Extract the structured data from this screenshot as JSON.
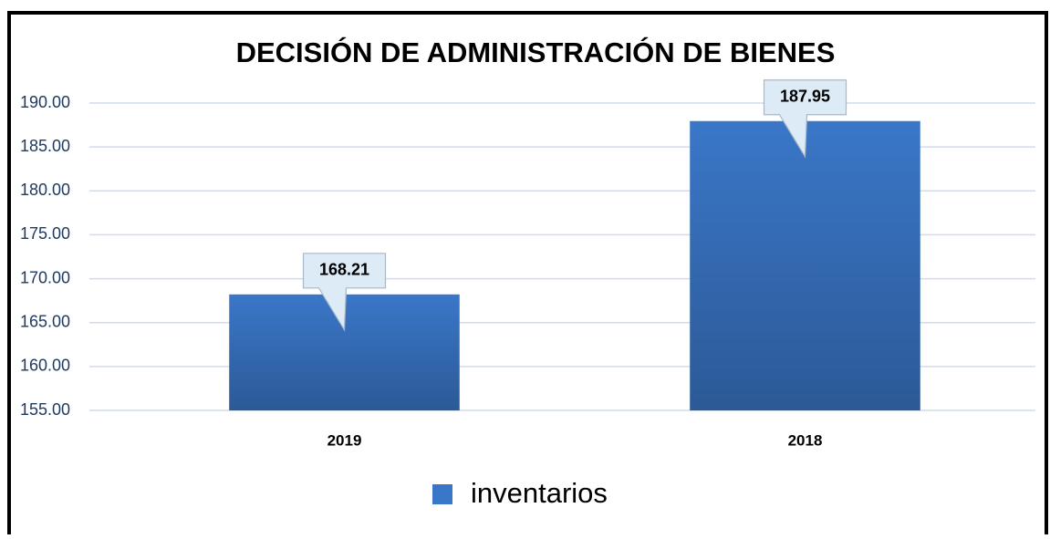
{
  "chart_data": {
    "type": "bar",
    "title": "DECISIÓN DE ADMINISTRACIÓN DE BIENES",
    "categories": [
      "2019",
      "2018"
    ],
    "series": [
      {
        "name": "inventarios",
        "color": "#3a77c8",
        "values": [
          168.21,
          187.95
        ]
      }
    ],
    "ylim": [
      155,
      190
    ],
    "yticks": [
      {
        "value": 155,
        "label": "155.00"
      },
      {
        "value": 160,
        "label": "160.00"
      },
      {
        "value": 165,
        "label": "165.00"
      },
      {
        "value": 170,
        "label": "170.00"
      },
      {
        "value": 175,
        "label": "175.00"
      },
      {
        "value": 180,
        "label": "180.00"
      },
      {
        "value": 185,
        "label": "185.00"
      },
      {
        "value": 190,
        "label": "190.00"
      }
    ],
    "grid": true,
    "legend": "bottom"
  }
}
